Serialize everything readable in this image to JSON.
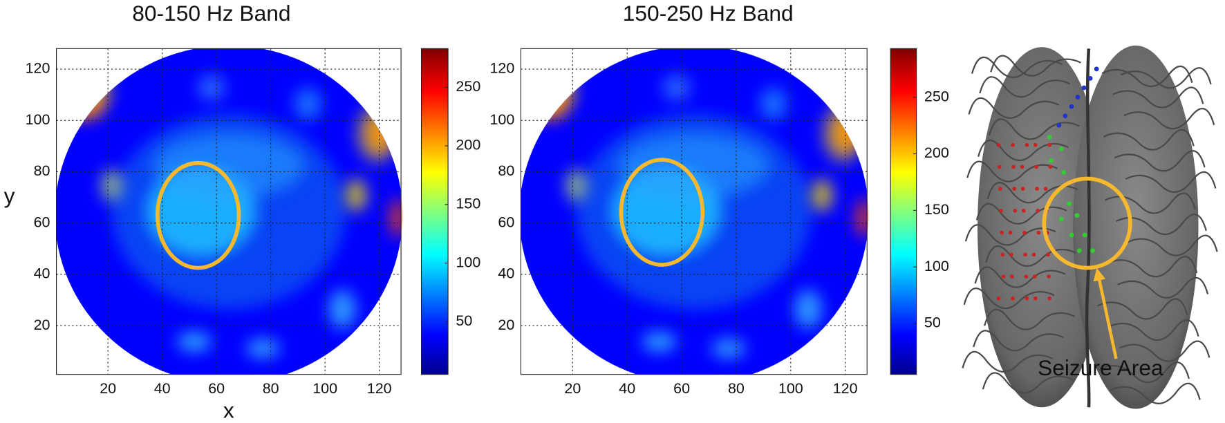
{
  "chart_data": [
    {
      "type": "heatmap",
      "title": "80-150 Hz Band",
      "xlabel": "x",
      "ylabel": "y",
      "xlim": [
        1,
        128
      ],
      "ylim": [
        1,
        128
      ],
      "xticks": [
        20,
        40,
        60,
        80,
        100,
        120
      ],
      "yticks": [
        20,
        40,
        60,
        80,
        100,
        120
      ],
      "grid": true,
      "colormap": "jet",
      "colorbar": {
        "clim": [
          5,
          283
        ],
        "ticks": [
          50,
          100,
          150,
          200,
          250
        ]
      }
    },
    {
      "type": "heatmap",
      "title": "150-250 Hz Band",
      "xlim": [
        1,
        128
      ],
      "ylim": [
        1,
        128
      ],
      "xticks": [
        20,
        40,
        60,
        80,
        100,
        120
      ],
      "yticks": [
        20,
        40,
        60,
        80,
        100,
        120
      ],
      "grid": true,
      "colormap": "jet",
      "colorbar": {
        "clim": [
          5,
          293
        ],
        "ticks": [
          50,
          100,
          150,
          200,
          250
        ]
      }
    }
  ],
  "annotation": "Seizure Area"
}
